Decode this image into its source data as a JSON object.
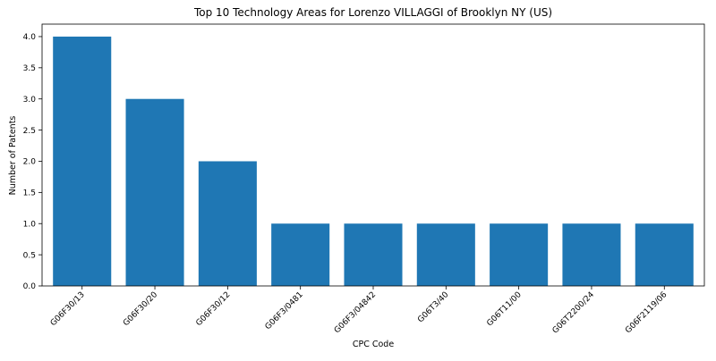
{
  "chart_data": {
    "type": "bar",
    "title": "Top 10 Technology Areas for Lorenzo VILLAGGI of Brooklyn NY (US)",
    "xlabel": "CPC Code",
    "ylabel": "Number of Patents",
    "categories": [
      "G06F30/13",
      "G06F30/20",
      "G06F30/12",
      "G06F3/0481",
      "G06F3/04842",
      "G06T3/40",
      "G06T11/00",
      "G06T2200/24",
      "G06F2119/06"
    ],
    "values": [
      4,
      3,
      2,
      1,
      1,
      1,
      1,
      1,
      1
    ],
    "ylim": [
      0,
      4.2
    ],
    "yticks": [
      "0.0",
      "0.5",
      "1.0",
      "1.5",
      "2.0",
      "2.5",
      "3.0",
      "3.5",
      "4.0"
    ],
    "grid": false,
    "legend": "none",
    "bar_color": "#1f77b4"
  }
}
